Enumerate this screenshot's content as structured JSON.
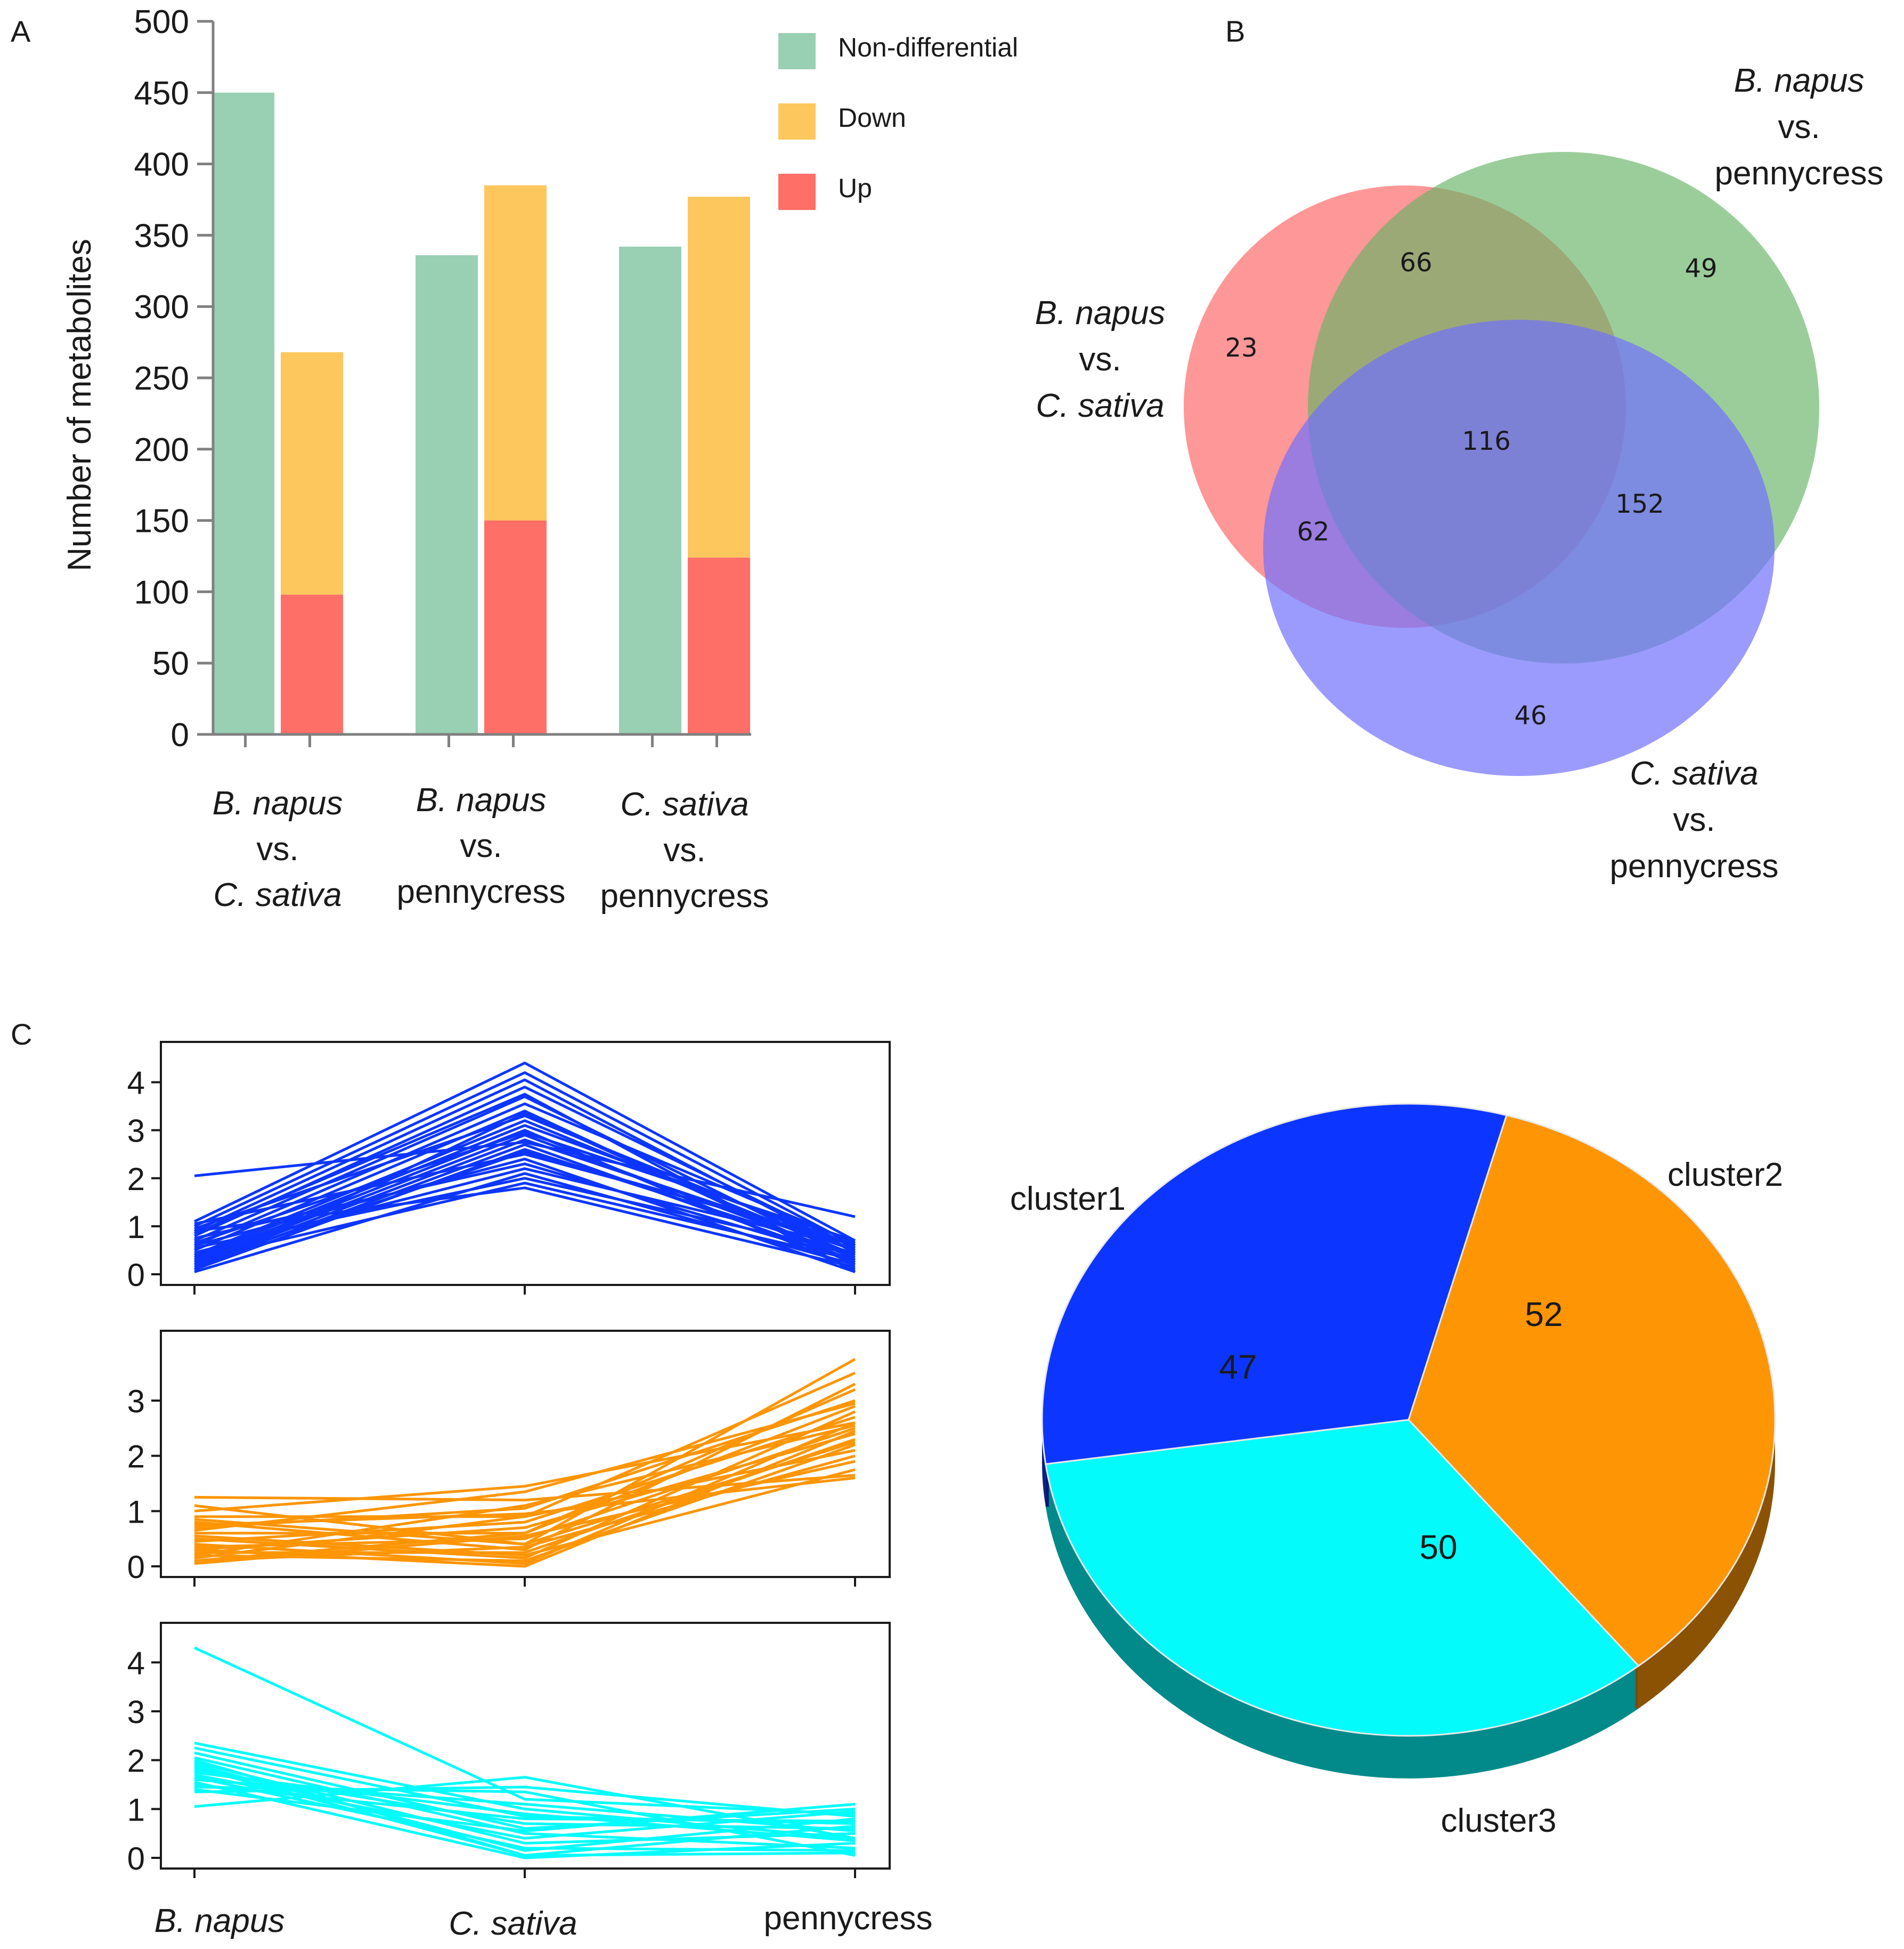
{
  "panels": {
    "a": {
      "letter": "A"
    },
    "b": {
      "letter": "B"
    },
    "c": {
      "letter": "C"
    }
  },
  "colors": {
    "nondiff": "#99cfb3",
    "down": "#fdc75e",
    "up": "#fe6f67",
    "venn_red": "#fe6f6f",
    "venn_green": "#66b266",
    "venn_blue": "#7070fe",
    "cluster1": "#0c36ff",
    "cluster2": "#fd9505",
    "cluster3": "#04fbfb",
    "axis": "#808080"
  },
  "chart_data": [
    {
      "id": "A",
      "type": "bar",
      "ylabel": "Number of metabolites",
      "ylim": [
        0,
        500
      ],
      "yticks": [
        "0",
        "50",
        "100",
        "150",
        "200",
        "250",
        "300",
        "350",
        "400",
        "450",
        "500"
      ],
      "legend": [
        {
          "name": "Non-differential",
          "color_key": "nondiff"
        },
        {
          "name": "Down",
          "color_key": "down"
        },
        {
          "name": "Up",
          "color_key": "up"
        }
      ],
      "categories": [
        {
          "lines": [
            {
              "text": "B. napus",
              "italic": true
            },
            {
              "text": "vs.",
              "italic": false
            },
            {
              "text": "C. sativa",
              "italic": true
            }
          ]
        },
        {
          "lines": [
            {
              "text": "B. napus",
              "italic": true
            },
            {
              "text": "vs.",
              "italic": false
            },
            {
              "text": "pennycress",
              "italic": false
            }
          ]
        },
        {
          "lines": [
            {
              "text": "C. sativa",
              "italic": true
            },
            {
              "text": "vs.",
              "italic": false
            },
            {
              "text": "pennycress",
              "italic": false
            }
          ]
        }
      ],
      "series": [
        {
          "name": "Non-differential",
          "values": [
            450,
            336,
            342
          ]
        },
        {
          "name": "Down",
          "values": [
            170,
            235,
            253
          ]
        },
        {
          "name": "Up",
          "values": [
            98,
            150,
            124
          ]
        }
      ],
      "note": "Down and Up are stacked in the second bar of each group"
    },
    {
      "id": "B",
      "type": "venn",
      "sets": [
        {
          "lines": [
            {
              "text": "B. napus",
              "italic": true
            },
            {
              "text": "vs.",
              "italic": false
            },
            {
              "text": "C. sativa",
              "italic": true
            }
          ],
          "color_key": "venn_red"
        },
        {
          "lines": [
            {
              "text": "B. napus",
              "italic": true
            },
            {
              "text": "vs.",
              "italic": false
            },
            {
              "text": "pennycress",
              "italic": false
            }
          ],
          "color_key": "venn_green"
        },
        {
          "lines": [
            {
              "text": "C. sativa",
              "italic": true
            },
            {
              "text": "vs.",
              "italic": false
            },
            {
              "text": "pennycress",
              "italic": false
            }
          ],
          "color_key": "venn_blue"
        }
      ],
      "regions": {
        "red_only": "23",
        "green_only": "49",
        "blue_only": "46",
        "red_green": "66",
        "red_blue": "62",
        "green_blue": "152",
        "all_three": "116"
      }
    },
    {
      "id": "C-lines",
      "type": "line",
      "x": [
        "B. napus",
        "C. sativa",
        "pennycress"
      ],
      "x_italic": [
        true,
        true,
        false
      ],
      "panels": [
        {
          "name": "cluster1",
          "color_key": "cluster1",
          "ylim": [
            0,
            4.5
          ],
          "yticks": [
            0,
            1,
            2,
            3,
            4
          ],
          "lines": [
            [
              2.05,
              2.75,
              1.2
            ],
            [
              1.1,
              4.4,
              0.7
            ],
            [
              1.0,
              4.2,
              0.6
            ],
            [
              0.9,
              4.05,
              0.45
            ],
            [
              0.8,
              3.9,
              0.55
            ],
            [
              0.7,
              3.7,
              0.3
            ],
            [
              0.6,
              3.55,
              0.65
            ],
            [
              0.5,
              3.4,
              0.2
            ],
            [
              0.95,
              3.3,
              0.5
            ],
            [
              0.4,
              3.2,
              0.4
            ],
            [
              0.35,
              3.1,
              0.6
            ],
            [
              0.3,
              3.0,
              0.1
            ],
            [
              0.25,
              2.9,
              0.35
            ],
            [
              0.2,
              2.8,
              0.5
            ],
            [
              0.15,
              2.7,
              0.25
            ],
            [
              0.1,
              2.6,
              0.4
            ],
            [
              1.05,
              2.5,
              0.65
            ],
            [
              0.6,
              2.4,
              0.05
            ],
            [
              0.75,
              2.3,
              0.3
            ],
            [
              0.45,
              2.2,
              0.55
            ],
            [
              0.05,
              2.1,
              0.2
            ],
            [
              0.55,
              2.0,
              0.45
            ],
            [
              0.3,
              1.9,
              0.3
            ],
            [
              0.9,
              1.8,
              0.15
            ],
            [
              0.2,
              2.55,
              0.6
            ],
            [
              0.65,
              2.95,
              0.7
            ],
            [
              0.1,
              3.35,
              0.25
            ],
            [
              0.85,
              3.75,
              0.05
            ]
          ]
        },
        {
          "name": "cluster2",
          "color_key": "cluster2",
          "ylim": [
            0,
            3.9
          ],
          "yticks": [
            0,
            1,
            2,
            3
          ],
          "lines": [
            [
              1.25,
              1.2,
              1.65
            ],
            [
              1.1,
              0.4,
              3.75
            ],
            [
              1.0,
              1.45,
              2.6
            ],
            [
              0.9,
              0.9,
              3.5
            ],
            [
              0.8,
              0.3,
              3.3
            ],
            [
              0.7,
              1.05,
              3.0
            ],
            [
              0.6,
              0.6,
              2.9
            ],
            [
              0.5,
              0.15,
              2.8
            ],
            [
              0.45,
              0.8,
              2.7
            ],
            [
              0.4,
              0.05,
              2.6
            ],
            [
              0.35,
              0.5,
              2.5
            ],
            [
              0.3,
              0.7,
              2.4
            ],
            [
              0.25,
              0.25,
              2.3
            ],
            [
              0.2,
              0.1,
              2.2
            ],
            [
              0.15,
              0.9,
              2.1
            ],
            [
              0.1,
              0.35,
              2.0
            ],
            [
              0.05,
              0.55,
              1.9
            ],
            [
              0.55,
              0.2,
              1.75
            ],
            [
              0.75,
              0.95,
              1.6
            ],
            [
              0.65,
              1.35,
              2.95
            ],
            [
              0.1,
              0.6,
              3.2
            ],
            [
              0.3,
              0.0,
              2.45
            ],
            [
              0.85,
              0.4,
              2.25
            ],
            [
              0.2,
              1.1,
              2.55
            ]
          ]
        },
        {
          "name": "cluster3",
          "color_key": "cluster3",
          "ylim": [
            0,
            4.5
          ],
          "yticks": [
            0,
            1,
            2,
            3,
            4
          ],
          "lines": [
            [
              4.3,
              1.2,
              0.9
            ],
            [
              2.35,
              1.0,
              0.4
            ],
            [
              2.25,
              0.85,
              0.7
            ],
            [
              2.15,
              0.6,
              1.0
            ],
            [
              2.05,
              0.5,
              0.2
            ],
            [
              1.95,
              0.3,
              0.5
            ],
            [
              1.9,
              0.15,
              0.8
            ],
            [
              1.85,
              0.05,
              0.1
            ],
            [
              1.8,
              0.7,
              0.6
            ],
            [
              1.75,
              0.9,
              0.35
            ],
            [
              1.7,
              0.4,
              0.95
            ],
            [
              1.65,
              0.2,
              0.15
            ],
            [
              1.6,
              1.1,
              0.55
            ],
            [
              1.55,
              0.0,
              0.3
            ],
            [
              1.5,
              0.8,
              0.75
            ],
            [
              1.45,
              1.35,
              0.05
            ],
            [
              1.4,
              0.55,
              1.1
            ],
            [
              1.05,
              1.65,
              0.4
            ],
            [
              1.35,
              1.45,
              0.85
            ],
            [
              2.0,
              0.05,
              0.65
            ]
          ]
        }
      ]
    },
    {
      "id": "C-pie",
      "type": "pie",
      "slices": [
        {
          "label": "cluster1",
          "value": 47,
          "value_text": "47",
          "color_key": "cluster1"
        },
        {
          "label": "cluster2",
          "value": 52,
          "value_text": "52",
          "color_key": "cluster2"
        },
        {
          "label": "cluster3",
          "value": 50,
          "value_text": "50",
          "color_key": "cluster3"
        }
      ]
    }
  ]
}
